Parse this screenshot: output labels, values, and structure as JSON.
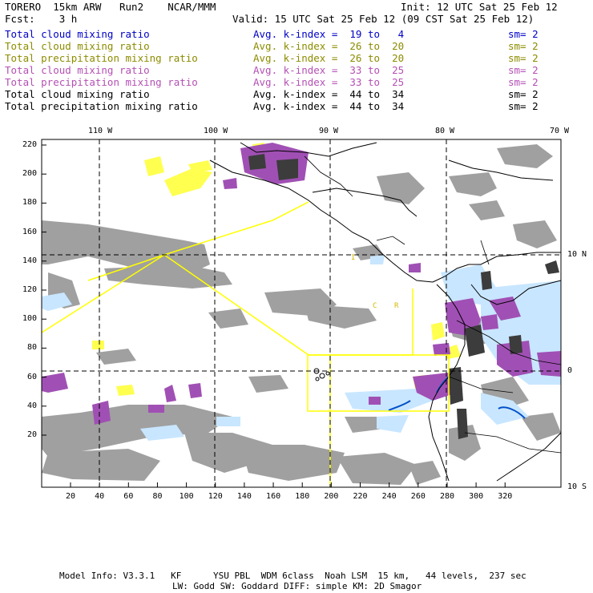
{
  "header": {
    "title": "TORERO  15km ARW   Run2    NCAR/MMM",
    "init": "Init: 12 UTC Sat 25 Feb 12",
    "fcst": "Fcst:    3 h",
    "valid": "Valid: 15 UTC Sat 25 Feb 12 (09 CST Sat 25 Feb 12)"
  },
  "legend": [
    {
      "field": "Total cloud mixing ratio",
      "index": "Avg. k-index =  19 to   4",
      "sm": "sm= 2",
      "color": "#0000c8"
    },
    {
      "field": "Total cloud mixing ratio",
      "index": "Avg. k-index =  26 to  20",
      "sm": "sm= 2",
      "color": "#8c8c00"
    },
    {
      "field": "Total precipitation mixing ratio",
      "index": "Avg. k-index =  26 to  20",
      "sm": "sm= 2",
      "color": "#8c8c00"
    },
    {
      "field": "Total cloud mixing ratio",
      "index": "Avg. k-index =  33 to  25",
      "sm": "sm= 2",
      "color": "#b450b4"
    },
    {
      "field": "Total precipitation mixing ratio",
      "index": "Avg. k-index =  33 to  25",
      "sm": "sm= 2",
      "color": "#b450b4"
    },
    {
      "field": "Total cloud mixing ratio",
      "index": "Avg. k-index =  44 to  34",
      "sm": "sm= 2",
      "color": "#000000"
    },
    {
      "field": "Total precipitation mixing ratio",
      "index": "Avg. k-index =  44 to  34",
      "sm": "sm= 2",
      "color": "#000000"
    }
  ],
  "map": {
    "lon_labels": [
      "110 W",
      "100 W",
      "90 W",
      "80 W",
      "70 W"
    ],
    "lat_labels": [
      "10 N",
      "0",
      "10 S"
    ],
    "y_ticks": [
      "220",
      "200",
      "180",
      "160",
      "140",
      "120",
      "100",
      "80",
      "60",
      "40",
      "20"
    ],
    "x_ticks": [
      "20",
      "40",
      "60",
      "80",
      "100",
      "120",
      "140",
      "160",
      "180",
      "200",
      "220",
      "240",
      "260",
      "280",
      "300",
      "320"
    ],
    "region_labels": [
      "I",
      "C",
      "R"
    ]
  },
  "footer": {
    "line1": "Model Info: V3.3.1   KF      YSU PBL  WDM 6class  Noah LSM  15 km,   44 levels,  237 sec",
    "line2": "LW: Godd SW: Goddard DIFF: simple KM: 2D Smagor"
  },
  "colors": {
    "gray": "#a0a0a0",
    "dark": "#3c3c3c",
    "purple": "#a050b4",
    "yellow": "#ffff50",
    "light_blue": "#c8e6ff",
    "blue": "#0050c8",
    "box": "#ffff00"
  }
}
